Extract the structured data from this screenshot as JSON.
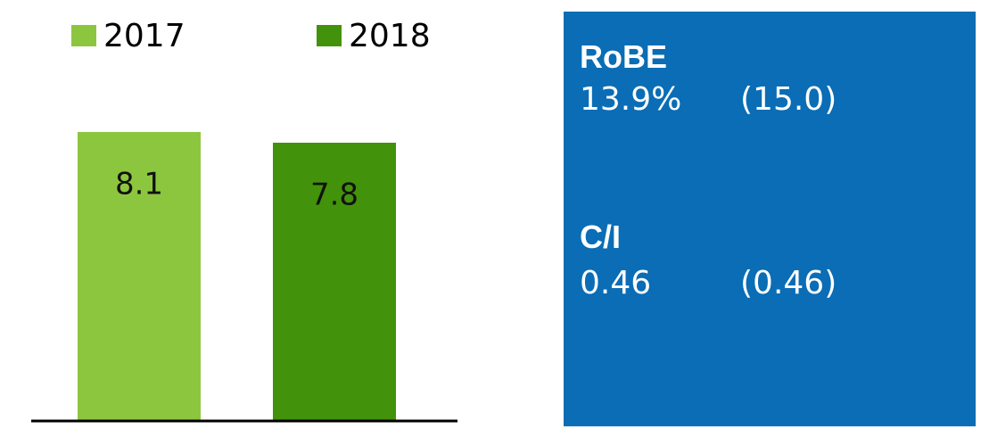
{
  "chart_data": {
    "type": "bar",
    "categories": [
      null
    ],
    "series": [
      {
        "name": "2017",
        "color": "#8cc63f",
        "values": [
          8.1
        ]
      },
      {
        "name": "2018",
        "color": "#43920b",
        "values": [
          7.8
        ]
      }
    ]
  },
  "panel": {
    "items": [
      {
        "label": "RoBE",
        "value": "13.9%",
        "prior": "(15.0)"
      },
      {
        "label": "C/I",
        "value": "0.46",
        "prior": "(0.46)"
      }
    ]
  }
}
